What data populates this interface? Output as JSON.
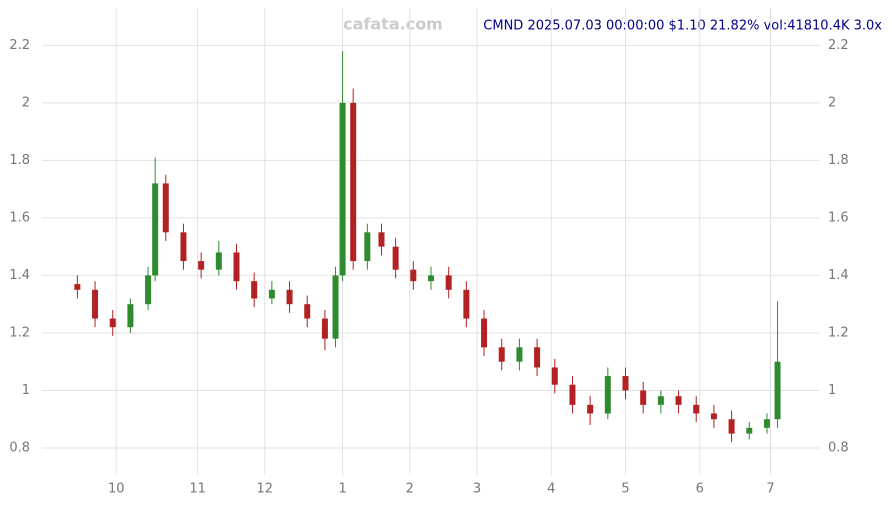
{
  "chart_data": {
    "type": "candlestick",
    "title": "CMND 2025.07.03 00:00:00 $1.10 21.82% vol:41810.4K 3.0x",
    "watermark": "cafata.com",
    "x": [
      0,
      5,
      10,
      15,
      20,
      22,
      25,
      30,
      35,
      40,
      45,
      50,
      55,
      60,
      65,
      70,
      73,
      75,
      78,
      82,
      86,
      90,
      95,
      100,
      105,
      110,
      115,
      120,
      125,
      130,
      135,
      140,
      145,
      150,
      155,
      160,
      165,
      170,
      175,
      180,
      185,
      190,
      195,
      198
    ],
    "open": [
      1.37,
      1.35,
      1.25,
      1.22,
      1.3,
      1.4,
      1.72,
      1.55,
      1.45,
      1.42,
      1.48,
      1.38,
      1.32,
      1.35,
      1.3,
      1.25,
      1.18,
      1.4,
      2.0,
      1.45,
      1.55,
      1.5,
      1.42,
      1.38,
      1.4,
      1.35,
      1.25,
      1.15,
      1.1,
      1.15,
      1.08,
      1.02,
      0.95,
      0.92,
      1.05,
      1.0,
      0.95,
      0.98,
      0.95,
      0.92,
      0.9,
      0.85,
      0.87,
      0.9
    ],
    "high": [
      1.4,
      1.38,
      1.28,
      1.32,
      1.43,
      1.81,
      1.75,
      1.58,
      1.48,
      1.52,
      1.51,
      1.41,
      1.38,
      1.38,
      1.33,
      1.28,
      1.43,
      2.18,
      2.05,
      1.58,
      1.58,
      1.53,
      1.45,
      1.43,
      1.43,
      1.38,
      1.28,
      1.18,
      1.18,
      1.18,
      1.11,
      1.05,
      0.98,
      1.08,
      1.08,
      1.03,
      1.0,
      1.0,
      0.98,
      0.95,
      0.93,
      0.89,
      0.92,
      1.31
    ],
    "low": [
      1.32,
      1.22,
      1.19,
      1.2,
      1.28,
      1.38,
      1.52,
      1.42,
      1.39,
      1.4,
      1.35,
      1.29,
      1.3,
      1.27,
      1.22,
      1.14,
      1.15,
      1.38,
      1.42,
      1.42,
      1.47,
      1.39,
      1.35,
      1.35,
      1.32,
      1.22,
      1.12,
      1.07,
      1.07,
      1.05,
      0.99,
      0.92,
      0.88,
      0.9,
      0.97,
      0.92,
      0.92,
      0.92,
      0.89,
      0.87,
      0.82,
      0.83,
      0.85,
      0.87
    ],
    "close": [
      1.35,
      1.25,
      1.22,
      1.3,
      1.4,
      1.72,
      1.55,
      1.45,
      1.42,
      1.48,
      1.38,
      1.32,
      1.35,
      1.3,
      1.25,
      1.18,
      1.4,
      2.0,
      1.45,
      1.55,
      1.5,
      1.42,
      1.38,
      1.4,
      1.35,
      1.25,
      1.15,
      1.1,
      1.15,
      1.08,
      1.02,
      0.95,
      0.92,
      1.05,
      1.0,
      0.95,
      0.98,
      0.95,
      0.92,
      0.9,
      0.85,
      0.87,
      0.9,
      1.1
    ],
    "up_color": "#2e8b2e",
    "down_color": "#b22222",
    "xlim": [
      -10,
      210
    ],
    "xticks": [
      {
        "value": 11,
        "label": "10"
      },
      {
        "value": 34,
        "label": "11"
      },
      {
        "value": 53,
        "label": "12"
      },
      {
        "value": 75,
        "label": "1"
      },
      {
        "value": 94,
        "label": "2"
      },
      {
        "value": 113,
        "label": "3"
      },
      {
        "value": 134,
        "label": "4"
      },
      {
        "value": 155,
        "label": "5"
      },
      {
        "value": 176,
        "label": "6"
      },
      {
        "value": 196,
        "label": "7"
      }
    ],
    "ylim": [
      0.706,
      2.33
    ],
    "yticks": [
      0.8,
      1.0,
      1.2,
      1.4,
      1.6,
      1.8,
      2.0,
      2.2
    ],
    "grid": true
  }
}
